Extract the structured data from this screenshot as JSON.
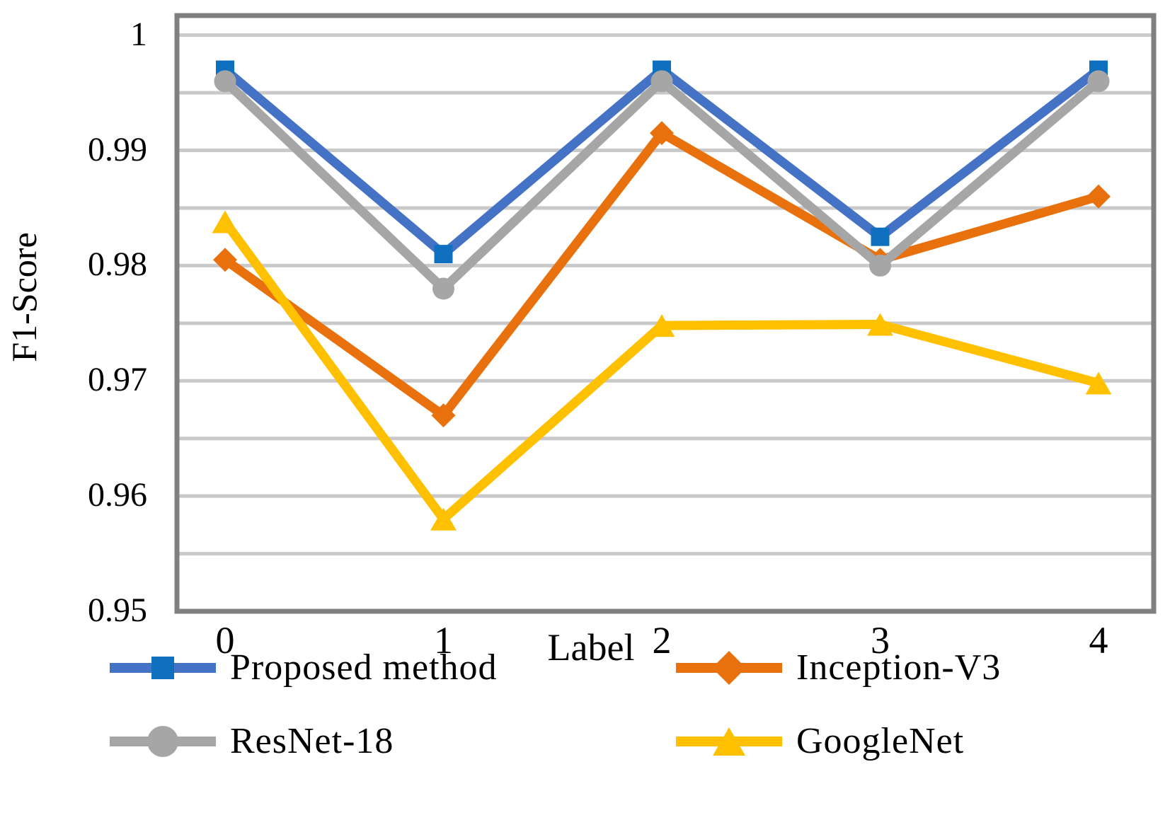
{
  "chart_data": {
    "type": "line",
    "title": "",
    "xlabel": "Label",
    "ylabel": "F1-Score",
    "categories": [
      0,
      1,
      2,
      3,
      4
    ],
    "x_tick_labels": [
      "0",
      "1",
      "2",
      "3",
      "4"
    ],
    "y_ticks": [
      {
        "value": 1.0,
        "label": "1"
      },
      {
        "value": 0.99,
        "label": "0.99"
      },
      {
        "value": 0.98,
        "label": "0.98"
      },
      {
        "value": 0.97,
        "label": "0.97"
      },
      {
        "value": 0.96,
        "label": "0.96"
      },
      {
        "value": 0.95,
        "label": "0.95"
      }
    ],
    "ylim": [
      0.95,
      1.0
    ],
    "y_minor_gridline_step": 0.005,
    "grid": "horizontal-only",
    "legend_position": "bottom-two-columns",
    "series": [
      {
        "name": "Proposed method",
        "marker": "square",
        "color": "#4472C4",
        "marker_color": "#1070C0",
        "values": [
          0.997,
          0.981,
          0.997,
          0.9825,
          0.997
        ]
      },
      {
        "name": "Inception-V3",
        "marker": "diamond",
        "color": "#E8710D",
        "marker_color": "#E8710D",
        "values": [
          0.9805,
          0.967,
          0.9915,
          0.9805,
          0.986
        ]
      },
      {
        "name": "ResNet-18",
        "marker": "circle",
        "color": "#A6A6A6",
        "marker_color": "#A6A6A6",
        "values": [
          0.996,
          0.978,
          0.996,
          0.98,
          0.996
        ]
      },
      {
        "name": "GoogleNet",
        "marker": "triangle",
        "color": "#FFC000",
        "marker_color": "#FFC000",
        "values": [
          0.9838,
          0.958,
          0.9748,
          0.9749,
          0.9698
        ]
      }
    ]
  },
  "style": {
    "gridline_color": "#C9C9C9",
    "plot_border_color": "#808080",
    "text_color": "#000000",
    "background": "#FFFFFF"
  }
}
